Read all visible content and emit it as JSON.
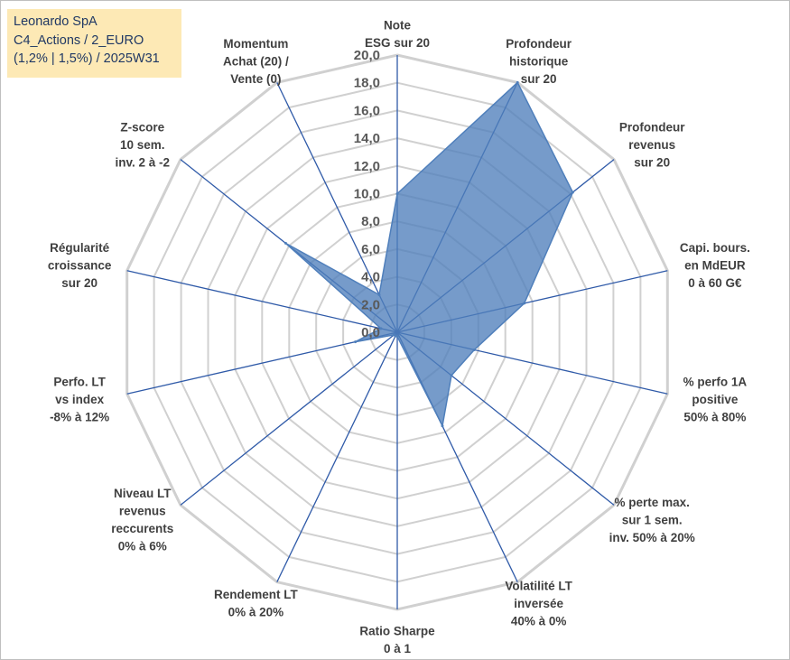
{
  "title_lines": [
    "Leonardo SpA",
    "C4_Actions / 2_EURO",
    "(1,2% | 1,5%) / 2025W31"
  ],
  "chart_data": {
    "type": "radar",
    "rmin": 0,
    "rmax": 20,
    "tick_values": [
      0,
      2,
      4,
      6,
      8,
      10,
      12,
      14,
      16,
      18,
      20
    ],
    "tick_labels": [
      "0,0",
      "2,0",
      "4,0",
      "6,0",
      "8,0",
      "10,0",
      "12,0",
      "14,0",
      "16,0",
      "18,0",
      "20,0"
    ],
    "series_color": "#4f7fbb",
    "axes": [
      {
        "label": [
          "Note",
          "ESG sur 20"
        ],
        "value": 10.0
      },
      {
        "label": [
          "Profondeur",
          "historique",
          "sur 20"
        ],
        "value": 20.0
      },
      {
        "label": [
          "Profondeur",
          "revenus",
          "sur 20"
        ],
        "value": 16.2
      },
      {
        "label": [
          "Capi. bours.",
          "en MdEUR",
          "0 à 60 G€"
        ],
        "value": 9.4
      },
      {
        "label": [
          "% perfo 1A",
          "positive",
          "50% à 80%"
        ],
        "value": 5.7
      },
      {
        "label": [
          "% perte max.",
          "sur 1 sem.",
          "inv. 50% à 20%"
        ],
        "value": 5.0
      },
      {
        "label": [
          "Volatilité LT",
          "inversée",
          "40% à 0%"
        ],
        "value": 7.5
      },
      {
        "label": [
          "Ratio Sharpe",
          "0 à 1"
        ],
        "value": 0.3
      },
      {
        "label": [
          "Rendement LT",
          "0% à 20%"
        ],
        "value": 0.3
      },
      {
        "label": [
          "Niveau LT",
          "revenus",
          "reccurents",
          "0% à 6%"
        ],
        "value": 0.3
      },
      {
        "label": [
          "Perfo. LT",
          "vs index",
          "-8% à 12%"
        ],
        "value": 3.1
      },
      {
        "label": [
          "Régularité",
          "croissance",
          "sur 20"
        ],
        "value": 1.2
      },
      {
        "label": [
          "Z-score",
          "10 sem.",
          "inv. 2 à -2"
        ],
        "value": 10.3
      },
      {
        "label": [
          "Momentum",
          "Achat (20) /",
          "Vente (0)"
        ],
        "value": 3.0
      }
    ]
  }
}
